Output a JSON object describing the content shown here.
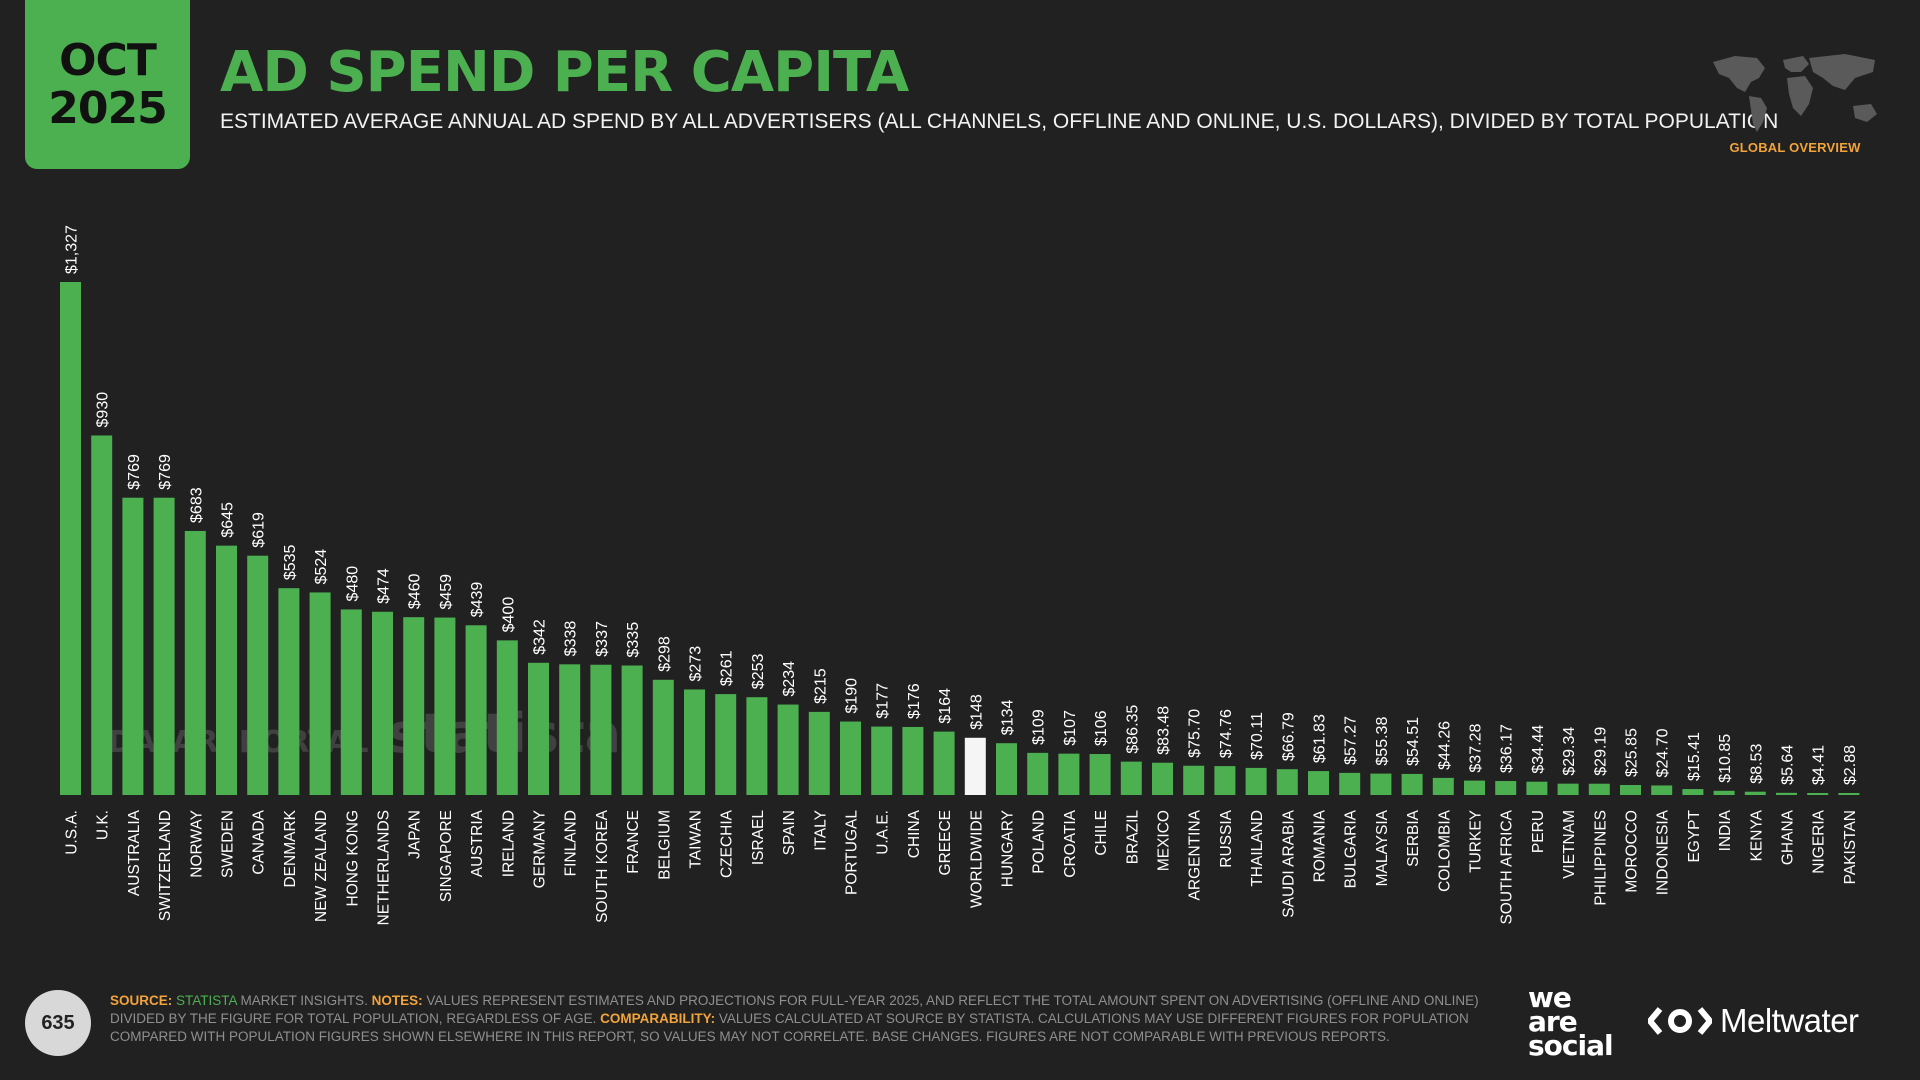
{
  "header": {
    "month": "OCT",
    "year": "2025",
    "title": "AD SPEND PER CAPITA",
    "subtitle": "ESTIMATED AVERAGE ANNUAL AD SPEND BY ALL ADVERTISERS (ALL CHANNELS, OFFLINE AND ONLINE, U.S. DOLLARS), DIVIDED BY TOTAL POPULATION",
    "region_label": "GLOBAL OVERVIEW"
  },
  "colors": {
    "background": "#212121",
    "accent": "#4caf50",
    "highlight_bar": "#f5f5f5",
    "note_key": "#f2a33a"
  },
  "watermarks": {
    "datareportal": "DATAREPORTAL",
    "statista": "statista"
  },
  "chart_data": {
    "type": "bar",
    "categories": [
      "U.S.A.",
      "U.K.",
      "AUSTRALIA",
      "SWITZERLAND",
      "NORWAY",
      "SWEDEN",
      "CANADA",
      "DENMARK",
      "NEW ZEALAND",
      "HONG KONG",
      "NETHERLANDS",
      "JAPAN",
      "SINGAPORE",
      "AUSTRIA",
      "IRELAND",
      "GERMANY",
      "FINLAND",
      "SOUTH KOREA",
      "FRANCE",
      "BELGIUM",
      "TAIWAN",
      "CZECHIA",
      "ISRAEL",
      "SPAIN",
      "ITALY",
      "PORTUGAL",
      "U.A.E.",
      "CHINA",
      "GREECE",
      "WORLDWIDE",
      "HUNGARY",
      "POLAND",
      "CROATIA",
      "CHILE",
      "BRAZIL",
      "MEXICO",
      "ARGENTINA",
      "RUSSIA",
      "THAILAND",
      "SAUDI ARABIA",
      "ROMANIA",
      "BULGARIA",
      "MALAYSIA",
      "SERBIA",
      "COLOMBIA",
      "TURKEY",
      "SOUTH AFRICA",
      "PERU",
      "VIETNAM",
      "PHILIPPINES",
      "MOROCCO",
      "INDONESIA",
      "EGYPT",
      "INDIA",
      "KENYA",
      "GHANA",
      "NIGERIA",
      "PAKISTAN"
    ],
    "values": [
      1327,
      930,
      769,
      769,
      683,
      645,
      619,
      535,
      524,
      480,
      474,
      460,
      459,
      439,
      400,
      342,
      338,
      337,
      335,
      298,
      273,
      261,
      253,
      234,
      215,
      190,
      177,
      176,
      164,
      148,
      134,
      109,
      107,
      106,
      86.35,
      83.48,
      75.7,
      74.76,
      70.11,
      66.79,
      61.83,
      57.27,
      55.38,
      54.51,
      44.26,
      37.28,
      36.17,
      34.44,
      29.34,
      29.19,
      25.85,
      24.7,
      15.41,
      10.85,
      8.53,
      5.64,
      4.41,
      2.88
    ],
    "labels": [
      "$1,327",
      "$930",
      "$769",
      "$769",
      "$683",
      "$645",
      "$619",
      "$535",
      "$524",
      "$480",
      "$474",
      "$460",
      "$459",
      "$439",
      "$400",
      "$342",
      "$338",
      "$337",
      "$335",
      "$298",
      "$273",
      "$261",
      "$253",
      "$234",
      "$215",
      "$190",
      "$177",
      "$176",
      "$164",
      "$148",
      "$134",
      "$109",
      "$107",
      "$106",
      "$86.35",
      "$83.48",
      "$75.70",
      "$74.76",
      "$70.11",
      "$66.79",
      "$61.83",
      "$57.27",
      "$55.38",
      "$54.51",
      "$44.26",
      "$37.28",
      "$36.17",
      "$34.44",
      "$29.34",
      "$29.19",
      "$25.85",
      "$24.70",
      "$15.41",
      "$10.85",
      "$8.53",
      "$5.64",
      "$4.41",
      "$2.88"
    ],
    "highlight_category": "WORLDWIDE",
    "ylim": [
      0,
      1327
    ],
    "grid": false,
    "legend": "none"
  },
  "footer": {
    "source_key": "SOURCE:",
    "source_name": "STATISTA",
    "source_rest": " MARKET INSIGHTS. ",
    "notes_key": "NOTES:",
    "notes_text": " VALUES REPRESENT ESTIMATES AND PROJECTIONS FOR FULL-YEAR 2025, AND REFLECT THE TOTAL AMOUNT SPENT ON ADVERTISING (OFFLINE AND ONLINE) DIVIDED BY THE FIGURE FOR TOTAL POPULATION, REGARDLESS OF AGE. ",
    "comparability_key": "COMPARABILITY:",
    "comparability_text": " VALUES CALCULATED AT SOURCE BY STATISTA. CALCULATIONS MAY USE DIFFERENT FIGURES FOR POPULATION COMPARED WITH POPULATION FIGURES SHOWN ELSEWHERE IN THIS REPORT, SO VALUES MAY NOT CORRELATE. BASE CHANGES. FIGURES ARE NOT COMPARABLE WITH PREVIOUS REPORTS.",
    "page_number": "635"
  },
  "brands": {
    "wearesocial_line1": "we",
    "wearesocial_line2": "are",
    "wearesocial_line3": "social",
    "meltwater": "Meltwater",
    "meltwater_icon": "meltwater-logo-icon"
  }
}
